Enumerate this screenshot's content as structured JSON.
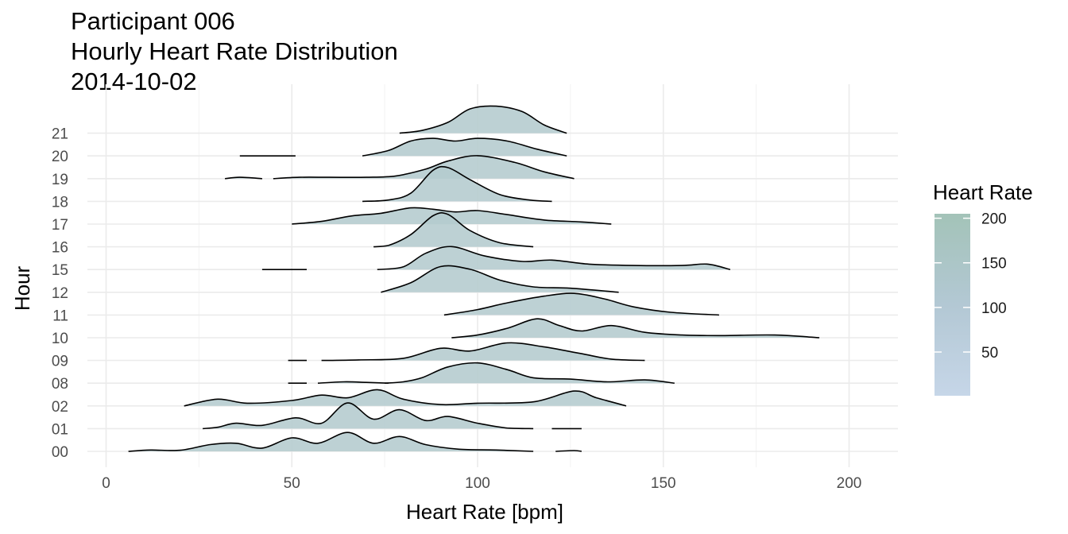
{
  "chart_data": {
    "type": "ridgeline",
    "title_lines": [
      "Participant 006",
      "Hourly Heart Rate Distribution",
      "2014-10-02"
    ],
    "xlabel": "Heart Rate [bpm]",
    "ylabel": "Hour",
    "xlim": [
      -5,
      213
    ],
    "x_ticks": [
      0,
      50,
      100,
      150,
      200
    ],
    "grid": true,
    "hours": [
      "00",
      "01",
      "02",
      "08",
      "09",
      "10",
      "11",
      "12",
      "15",
      "16",
      "17",
      "18",
      "19",
      "20",
      "21"
    ],
    "ridges": [
      {
        "hour": "00",
        "segments": [
          [
            [
              6,
              0
            ],
            [
              12,
              0.05
            ],
            [
              20,
              0.04
            ],
            [
              28,
              0.25
            ],
            [
              35,
              0.3
            ],
            [
              42,
              0.12
            ],
            [
              50,
              0.5
            ],
            [
              57,
              0.3
            ],
            [
              65,
              0.7
            ],
            [
              72,
              0.3
            ],
            [
              79,
              0.55
            ],
            [
              86,
              0.25
            ],
            [
              95,
              0.08
            ],
            [
              105,
              0.05
            ],
            [
              115,
              0
            ]
          ],
          [
            [
              121,
              0
            ],
            [
              126,
              0.03
            ],
            [
              128,
              0
            ]
          ]
        ]
      },
      {
        "hour": "01",
        "segments": [
          [
            [
              26,
              0
            ],
            [
              30,
              0.05
            ],
            [
              35,
              0.2
            ],
            [
              42,
              0.12
            ],
            [
              51,
              0.4
            ],
            [
              58,
              0.2
            ],
            [
              65,
              0.95
            ],
            [
              72,
              0.35
            ],
            [
              79,
              0.7
            ],
            [
              86,
              0.3
            ],
            [
              92,
              0.45
            ],
            [
              100,
              0.2
            ],
            [
              108,
              0.02
            ],
            [
              115,
              0
            ]
          ],
          [
            [
              120,
              0
            ],
            [
              128,
              0
            ]
          ]
        ]
      },
      {
        "hour": "02",
        "segments": [
          [
            [
              21,
              0
            ],
            [
              30,
              0.25
            ],
            [
              38,
              0.1
            ],
            [
              50,
              0.2
            ],
            [
              58,
              0.4
            ],
            [
              65,
              0.3
            ],
            [
              73,
              0.6
            ],
            [
              80,
              0.25
            ],
            [
              90,
              0.05
            ],
            [
              100,
              0.1
            ],
            [
              115,
              0.15
            ],
            [
              126,
              0.55
            ],
            [
              132,
              0.3
            ],
            [
              140,
              0
            ]
          ]
        ]
      },
      {
        "hour": "08",
        "segments": [
          [
            [
              49,
              0
            ],
            [
              54,
              0
            ]
          ],
          [
            [
              57,
              0
            ],
            [
              64,
              0.05
            ],
            [
              70,
              0.03
            ],
            [
              76,
              0
            ]
          ],
          [
            [
              75,
              0
            ],
            [
              80,
              0.05
            ],
            [
              85,
              0.2
            ],
            [
              92,
              0.6
            ],
            [
              100,
              0.75
            ],
            [
              108,
              0.5
            ],
            [
              115,
              0.2
            ],
            [
              125,
              0.15
            ],
            [
              135,
              0.05
            ],
            [
              145,
              0.12
            ],
            [
              153,
              0
            ]
          ]
        ]
      },
      {
        "hour": "09",
        "segments": [
          [
            [
              49,
              0
            ],
            [
              54,
              0
            ]
          ],
          [
            [
              58,
              0
            ],
            [
              68,
              0.02
            ],
            [
              80,
              0.08
            ],
            [
              90,
              0.45
            ],
            [
              98,
              0.35
            ],
            [
              108,
              0.65
            ],
            [
              118,
              0.5
            ],
            [
              128,
              0.25
            ],
            [
              136,
              0.05
            ],
            [
              145,
              0
            ]
          ]
        ]
      },
      {
        "hour": "10",
        "segments": [
          [
            [
              93,
              0
            ],
            [
              100,
              0.1
            ],
            [
              108,
              0.35
            ],
            [
              116,
              0.7
            ],
            [
              122,
              0.45
            ],
            [
              128,
              0.25
            ],
            [
              136,
              0.45
            ],
            [
              145,
              0.2
            ],
            [
              155,
              0.1
            ],
            [
              165,
              0.08
            ],
            [
              180,
              0.1
            ],
            [
              192,
              0
            ]
          ]
        ]
      },
      {
        "hour": "11",
        "segments": [
          [
            [
              91,
              0
            ],
            [
              100,
              0.2
            ],
            [
              108,
              0.45
            ],
            [
              118,
              0.7
            ],
            [
              126,
              0.8
            ],
            [
              134,
              0.6
            ],
            [
              142,
              0.3
            ],
            [
              152,
              0.1
            ],
            [
              165,
              0
            ]
          ]
        ]
      },
      {
        "hour": "12",
        "segments": [
          [
            [
              74,
              0
            ],
            [
              82,
              0.35
            ],
            [
              90,
              0.95
            ],
            [
              98,
              0.85
            ],
            [
              106,
              0.45
            ],
            [
              115,
              0.2
            ],
            [
              125,
              0.15
            ],
            [
              138,
              0
            ]
          ]
        ]
      },
      {
        "hour": "15",
        "segments": [
          [
            [
              42,
              0
            ],
            [
              54,
              0
            ]
          ],
          [
            [
              73,
              0
            ],
            [
              80,
              0.1
            ],
            [
              86,
              0.6
            ],
            [
              93,
              0.85
            ],
            [
              102,
              0.5
            ],
            [
              112,
              0.3
            ],
            [
              120,
              0.35
            ],
            [
              130,
              0.2
            ],
            [
              142,
              0.15
            ],
            [
              155,
              0.15
            ],
            [
              162,
              0.2
            ],
            [
              168,
              0
            ]
          ]
        ]
      },
      {
        "hour": "16",
        "segments": [
          [
            [
              72,
              0
            ],
            [
              76,
              0.05
            ],
            [
              82,
              0.45
            ],
            [
              88,
              1.15
            ],
            [
              92,
              1.2
            ],
            [
              98,
              0.6
            ],
            [
              106,
              0.15
            ],
            [
              115,
              0
            ]
          ]
        ]
      },
      {
        "hour": "17",
        "segments": [
          [
            [
              50,
              0
            ],
            [
              58,
              0.1
            ],
            [
              66,
              0.3
            ],
            [
              74,
              0.4
            ],
            [
              82,
              0.6
            ],
            [
              88,
              0.55
            ],
            [
              94,
              0.45
            ],
            [
              100,
              0.5
            ],
            [
              108,
              0.35
            ],
            [
              118,
              0.15
            ],
            [
              128,
              0.08
            ],
            [
              136,
              0
            ]
          ]
        ]
      },
      {
        "hour": "18",
        "segments": [
          [
            [
              69,
              0
            ],
            [
              76,
              0.05
            ],
            [
              82,
              0.3
            ],
            [
              88,
              1.15
            ],
            [
              92,
              1.25
            ],
            [
              98,
              0.8
            ],
            [
              106,
              0.25
            ],
            [
              114,
              0.05
            ],
            [
              120,
              0
            ]
          ]
        ]
      },
      {
        "hour": "19",
        "segments": [
          [
            [
              32,
              0
            ],
            [
              36,
              0.05
            ],
            [
              42,
              0
            ]
          ],
          [
            [
              45,
              0
            ],
            [
              52,
              0.05
            ],
            [
              60,
              0.05
            ],
            [
              70,
              0.05
            ],
            [
              78,
              0.1
            ],
            [
              86,
              0.35
            ],
            [
              92,
              0.65
            ],
            [
              100,
              0.85
            ],
            [
              110,
              0.6
            ],
            [
              118,
              0.25
            ],
            [
              126,
              0
            ]
          ]
        ]
      },
      {
        "hour": "20",
        "segments": [
          [
            [
              36,
              0
            ],
            [
              51,
              0
            ]
          ],
          [
            [
              69,
              0
            ],
            [
              76,
              0.2
            ],
            [
              82,
              0.55
            ],
            [
              88,
              0.65
            ],
            [
              94,
              0.55
            ],
            [
              100,
              0.65
            ],
            [
              108,
              0.55
            ],
            [
              116,
              0.25
            ],
            [
              124,
              0
            ]
          ]
        ]
      },
      {
        "hour": "21",
        "segments": [
          [
            [
              79,
              0
            ],
            [
              85,
              0.1
            ],
            [
              92,
              0.4
            ],
            [
              98,
              0.9
            ],
            [
              105,
              1.0
            ],
            [
              112,
              0.8
            ],
            [
              118,
              0.3
            ],
            [
              124,
              0
            ]
          ]
        ]
      }
    ],
    "legend": {
      "title": "Heart Rate",
      "ticks": [
        50,
        100,
        150,
        200
      ],
      "range": [
        1,
        205
      ],
      "colors": [
        "#c6d6e8",
        "#b3c8d4",
        "#a3c3b8"
      ]
    },
    "ridge_fill": "#b4cbce",
    "ridge_fill_opacity": 0.88
  }
}
